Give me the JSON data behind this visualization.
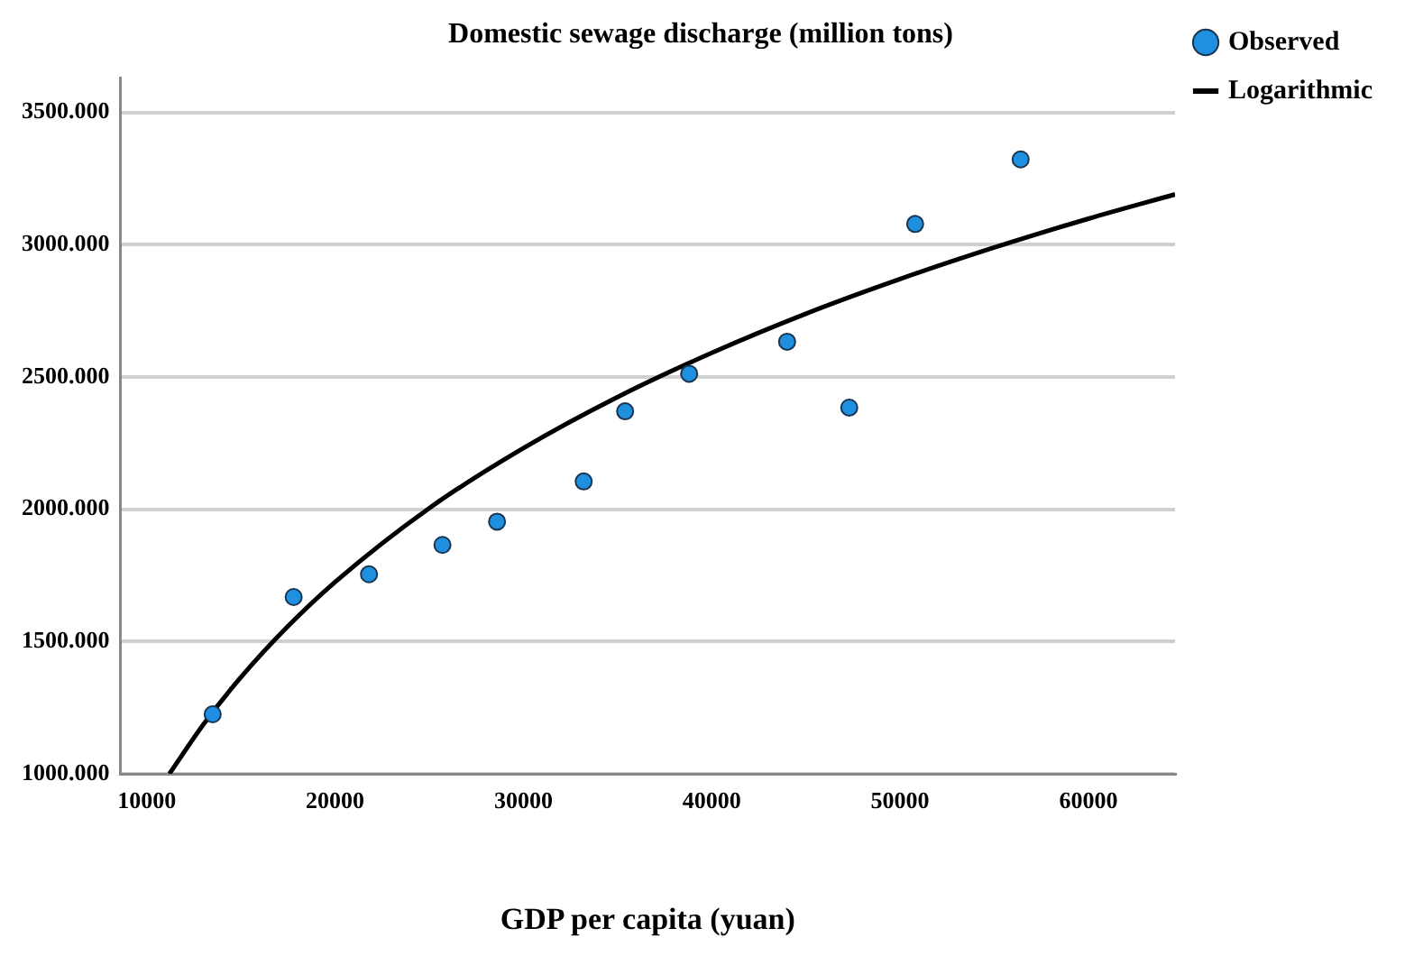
{
  "chart_data": {
    "type": "scatter",
    "title": "Domestic sewage discharge (million tons)",
    "xlabel": "GDP per capita (yuan)",
    "xlim": [
      8600,
      64600
    ],
    "xticks": [
      10000,
      20000,
      30000,
      40000,
      50000,
      60000
    ],
    "ylim": [
      1000,
      3630
    ],
    "yticks": [
      {
        "value": 1000,
        "label": "1000.000"
      },
      {
        "value": 1500,
        "label": "1500.000"
      },
      {
        "value": 2000,
        "label": "2000.000"
      },
      {
        "value": 2500,
        "label": "2500.000"
      },
      {
        "value": 3000,
        "label": "3000.000"
      },
      {
        "value": 3500,
        "label": "3500.000"
      }
    ],
    "grid": "y",
    "legend": "top right",
    "marker": "circle",
    "series": [
      {
        "name": "Observed",
        "type": "scatter",
        "color": "#1f8fe0",
        "x": [
          13500,
          17800,
          21800,
          25700,
          28600,
          33200,
          35400,
          38800,
          44000,
          47300,
          50800,
          56400
        ],
        "values": [
          1225,
          1668,
          1754,
          1865,
          1953,
          2105,
          2370,
          2512,
          2633,
          2384,
          3078,
          3322
        ]
      },
      {
        "name": "Logarithmic",
        "type": "line",
        "color": "#000000",
        "marker": "none",
        "line_style": "solid",
        "x": [
          11200,
          13000,
          15000,
          17500,
          20000,
          25000,
          30000,
          35000,
          40000,
          45000,
          50000,
          55000,
          60000,
          64600
        ],
        "values": [
          1000,
          1186,
          1365,
          1558,
          1725,
          2004,
          2231,
          2424,
          2591,
          2739,
          2870,
          2989,
          3098,
          3190
        ]
      }
    ]
  }
}
